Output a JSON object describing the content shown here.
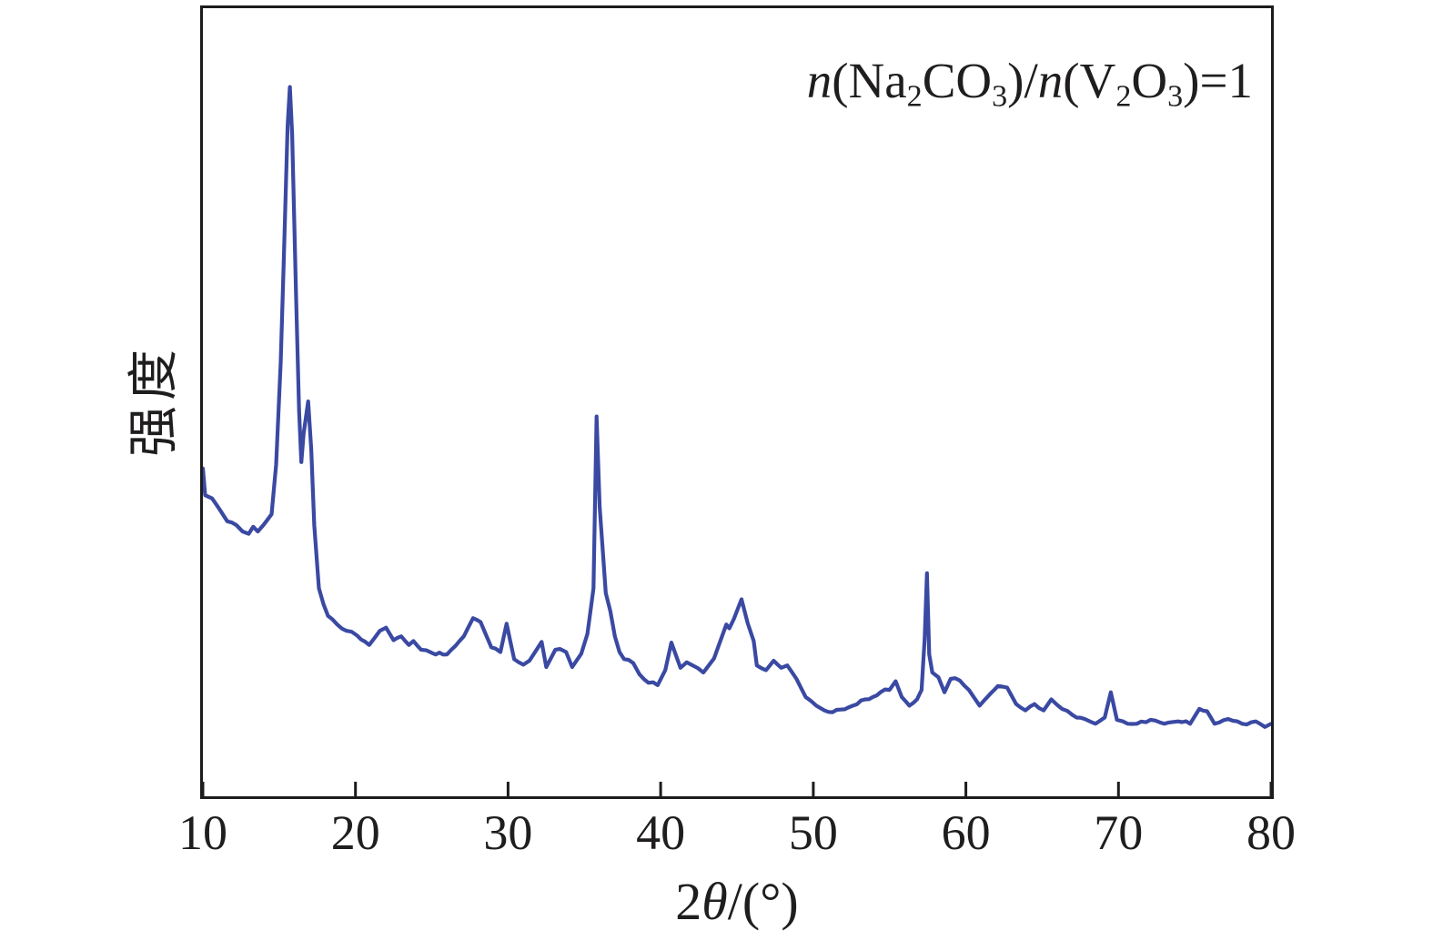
{
  "figure": {
    "annotation_parts": [
      {
        "t": "n",
        "italic": true
      },
      {
        "t": "(Na"
      },
      {
        "t": "2",
        "sub": true
      },
      {
        "t": "CO"
      },
      {
        "t": "3",
        "sub": true
      },
      {
        "t": ")/"
      },
      {
        "t": "n",
        "italic": true
      },
      {
        "t": "(V"
      },
      {
        "t": "2",
        "sub": true
      },
      {
        "t": "O"
      },
      {
        "t": "3",
        "sub": true
      },
      {
        "t": ")=1"
      }
    ],
    "x_title_parts": [
      {
        "t": "2"
      },
      {
        "t": "θ",
        "italic": true
      },
      {
        "t": "/(°)"
      }
    ],
    "colors": {
      "trace": "#3a49a2",
      "axis": "#1c1c1c",
      "text": "#1f1d1e",
      "background": "#ffffff"
    }
  },
  "chart_data": {
    "type": "line",
    "title": "",
    "annotation": "n(Na₂CO₃)/n(V₂O₃)=1",
    "xlabel": "2θ/(°)",
    "ylabel": "强度",
    "xlim": [
      10,
      80
    ],
    "ylim": [
      0,
      100
    ],
    "x_ticks": [
      10,
      20,
      30,
      40,
      50,
      60,
      70,
      80
    ],
    "y_ticks": [],
    "grid": false,
    "legend": "none",
    "y_units": "arbitrary intensity (no scale shown)",
    "series": [
      {
        "name": "n(Na2CO3)/n(V2O3)=1 XRD trace",
        "points": [
          [
            10.0,
            41.6
          ],
          [
            10.15,
            38.2
          ],
          [
            10.6,
            37.8
          ],
          [
            11.1,
            36.4
          ],
          [
            11.6,
            34.9
          ],
          [
            12.2,
            34.4
          ],
          [
            12.6,
            33.6
          ],
          [
            13.0,
            33.3
          ],
          [
            13.3,
            34.2
          ],
          [
            13.6,
            33.6
          ],
          [
            14.0,
            34.5
          ],
          [
            14.5,
            35.8
          ],
          [
            14.8,
            42.1
          ],
          [
            15.1,
            55.0
          ],
          [
            15.3,
            68.0
          ],
          [
            15.55,
            85.0
          ],
          [
            15.7,
            90.0
          ],
          [
            15.85,
            84.0
          ],
          [
            16.1,
            64.0
          ],
          [
            16.3,
            49.0
          ],
          [
            16.45,
            42.4
          ],
          [
            16.6,
            46.0
          ],
          [
            16.9,
            50.1
          ],
          [
            17.1,
            44.0
          ],
          [
            17.3,
            34.4
          ],
          [
            17.6,
            26.4
          ],
          [
            17.9,
            24.4
          ],
          [
            18.2,
            22.9
          ],
          [
            18.8,
            21.8
          ],
          [
            19.4,
            21.0
          ],
          [
            20.1,
            20.4
          ],
          [
            20.9,
            19.2
          ],
          [
            21.6,
            21.0
          ],
          [
            22.0,
            21.4
          ],
          [
            22.5,
            19.8
          ],
          [
            23.0,
            20.3
          ],
          [
            23.5,
            19.2
          ],
          [
            23.8,
            19.7
          ],
          [
            24.3,
            18.6
          ],
          [
            25.0,
            18.2
          ],
          [
            26.0,
            18.0
          ],
          [
            27.1,
            20.3
          ],
          [
            27.7,
            22.6
          ],
          [
            28.2,
            22.1
          ],
          [
            28.9,
            18.9
          ],
          [
            29.5,
            18.3
          ],
          [
            29.9,
            21.9
          ],
          [
            30.4,
            17.4
          ],
          [
            31.0,
            16.7
          ],
          [
            31.4,
            17.2
          ],
          [
            32.2,
            19.6
          ],
          [
            32.5,
            16.4
          ],
          [
            33.1,
            18.6
          ],
          [
            33.4,
            18.7
          ],
          [
            33.8,
            18.3
          ],
          [
            34.2,
            16.4
          ],
          [
            34.8,
            18.1
          ],
          [
            35.2,
            20.6
          ],
          [
            35.4,
            23.5
          ],
          [
            35.6,
            26.4
          ],
          [
            35.8,
            48.2
          ],
          [
            36.0,
            36.7
          ],
          [
            36.4,
            25.8
          ],
          [
            36.7,
            23.5
          ],
          [
            37.0,
            20.3
          ],
          [
            37.3,
            18.3
          ],
          [
            37.6,
            17.4
          ],
          [
            38.2,
            16.9
          ],
          [
            38.6,
            15.5
          ],
          [
            39.2,
            14.4
          ],
          [
            39.8,
            14.1
          ],
          [
            40.3,
            16.0
          ],
          [
            40.7,
            19.5
          ],
          [
            41.3,
            16.3
          ],
          [
            41.7,
            17.0
          ],
          [
            42.1,
            16.6
          ],
          [
            42.8,
            15.7
          ],
          [
            43.5,
            17.5
          ],
          [
            44.3,
            21.8
          ],
          [
            44.5,
            21.3
          ],
          [
            44.8,
            22.5
          ],
          [
            45.3,
            25.0
          ],
          [
            45.7,
            22.0
          ],
          [
            46.1,
            19.7
          ],
          [
            46.3,
            16.6
          ],
          [
            46.9,
            16.0
          ],
          [
            47.4,
            17.2
          ],
          [
            47.9,
            16.3
          ],
          [
            48.3,
            16.6
          ],
          [
            48.9,
            14.9
          ],
          [
            49.5,
            12.6
          ],
          [
            50.2,
            11.5
          ],
          [
            51.0,
            10.7
          ],
          [
            51.8,
            11.0
          ],
          [
            52.6,
            11.5
          ],
          [
            53.4,
            12.3
          ],
          [
            53.9,
            12.6
          ],
          [
            54.4,
            13.2
          ],
          [
            55.0,
            13.5
          ],
          [
            55.4,
            14.6
          ],
          [
            55.8,
            12.6
          ],
          [
            56.3,
            11.5
          ],
          [
            56.8,
            12.3
          ],
          [
            57.1,
            13.5
          ],
          [
            57.3,
            20.0
          ],
          [
            57.45,
            28.3
          ],
          [
            57.6,
            18.0
          ],
          [
            57.8,
            15.7
          ],
          [
            58.2,
            15.1
          ],
          [
            58.6,
            13.2
          ],
          [
            59.0,
            14.9
          ],
          [
            59.6,
            14.7
          ],
          [
            60.2,
            13.5
          ],
          [
            60.9,
            11.5
          ],
          [
            61.6,
            13.0
          ],
          [
            62.1,
            14.0
          ],
          [
            62.7,
            13.8
          ],
          [
            63.3,
            11.7
          ],
          [
            63.9,
            10.9
          ],
          [
            64.5,
            11.7
          ],
          [
            65.1,
            10.9
          ],
          [
            65.6,
            12.3
          ],
          [
            66.3,
            11.1
          ],
          [
            67.0,
            10.3
          ],
          [
            67.8,
            9.8
          ],
          [
            68.5,
            9.2
          ],
          [
            69.1,
            10.0
          ],
          [
            69.5,
            13.2
          ],
          [
            69.9,
            9.7
          ],
          [
            70.3,
            9.5
          ],
          [
            71.2,
            9.2
          ],
          [
            72.1,
            9.7
          ],
          [
            73.0,
            9.2
          ],
          [
            73.9,
            9.5
          ],
          [
            74.7,
            9.2
          ],
          [
            75.3,
            11.1
          ],
          [
            75.8,
            10.8
          ],
          [
            76.3,
            9.2
          ],
          [
            77.2,
            9.8
          ],
          [
            78.1,
            9.2
          ],
          [
            79.0,
            9.5
          ],
          [
            79.6,
            8.8
          ],
          [
            80.0,
            9.2
          ]
        ]
      }
    ]
  }
}
